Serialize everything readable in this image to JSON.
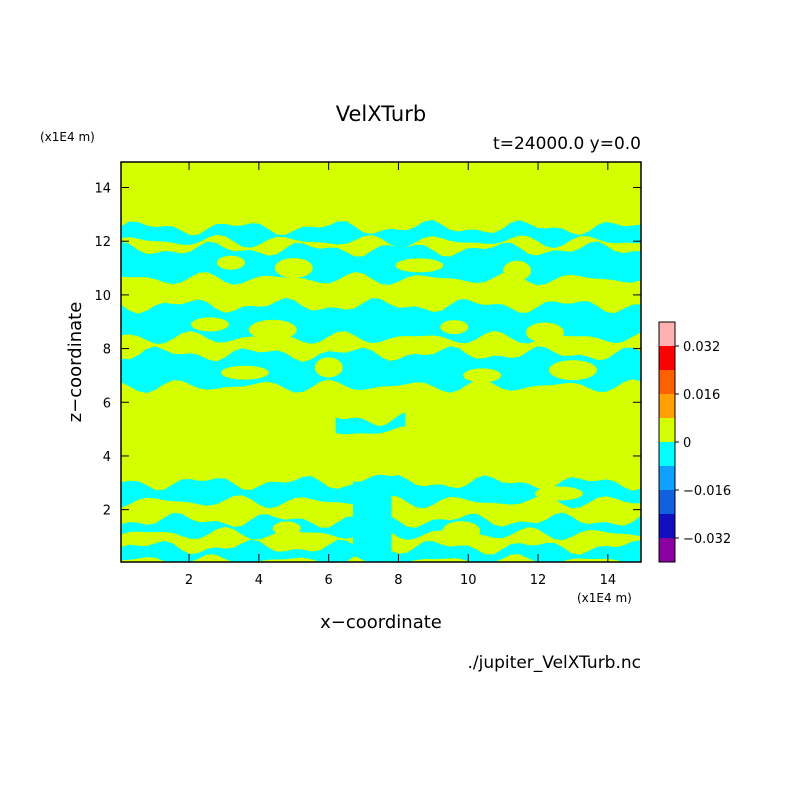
{
  "chart_data": {
    "type": "heatmap",
    "title": "VelXTurb",
    "subtitle": "t=24000.0 y=0.0",
    "xlabel": "x−coordinate",
    "ylabel": "z−coordinate",
    "x_unit": "(x1E4 m)",
    "y_unit": "(x1E4 m)",
    "xlim": [
      0.05,
      14.95
    ],
    "ylim": [
      0.05,
      14.95
    ],
    "x_ticks": [
      2,
      4,
      6,
      8,
      10,
      12,
      14
    ],
    "y_ticks": [
      2,
      4,
      6,
      8,
      10,
      12,
      14
    ],
    "x_tick_labels": [
      "2",
      "4",
      "6",
      "8",
      "10",
      "12",
      "14"
    ],
    "y_tick_labels": [
      "2",
      "4",
      "6",
      "8",
      "10",
      "12",
      "14"
    ],
    "colorbar": {
      "levels": [
        -0.04,
        -0.032,
        -0.024,
        -0.016,
        -0.008,
        0,
        0.008,
        0.016,
        0.024,
        0.032,
        0.04
      ],
      "colors": [
        "#8b00a0",
        "#1010c0",
        "#1060e0",
        "#10a0ff",
        "#00ffff",
        "#d4ff00",
        "#ffa000",
        "#ff6000",
        "#ff0000",
        "#ffb0b0"
      ],
      "tick_values": [
        -0.032,
        -0.016,
        0,
        0.016,
        0.032
      ],
      "tick_labels": [
        "−0.032",
        "−0.016",
        "0",
        "0.016",
        "0.032"
      ]
    },
    "background_class": "0 to 0.008",
    "regions_class": "-0.008 to 0",
    "regions": [
      {
        "x0": 0.05,
        "x1": 14.95,
        "z0": 12.0,
        "z1": 12.5
      },
      {
        "x0": 0.05,
        "x1": 14.95,
        "z0": 10.6,
        "z1": 11.7
      },
      {
        "x0": 0.05,
        "x1": 14.95,
        "z0": 8.4,
        "z1": 9.6
      },
      {
        "x0": 0.05,
        "x1": 14.95,
        "z0": 6.6,
        "z1": 7.8
      },
      {
        "x0": 6.2,
        "x1": 8.2,
        "z0": 4.9,
        "z1": 5.4
      },
      {
        "x0": 0.05,
        "x1": 14.95,
        "z0": 2.3,
        "z1": 3.0
      },
      {
        "x0": 0.05,
        "x1": 14.95,
        "z0": 1.1,
        "z1": 1.6
      },
      {
        "x0": 0.05,
        "x1": 14.95,
        "z0": 0.1,
        "z1": 0.6
      },
      {
        "x0": 6.7,
        "x1": 7.8,
        "z0": 0.05,
        "z1": 3.3
      }
    ],
    "footnote": "./jupiter_VelXTurb.nc"
  }
}
